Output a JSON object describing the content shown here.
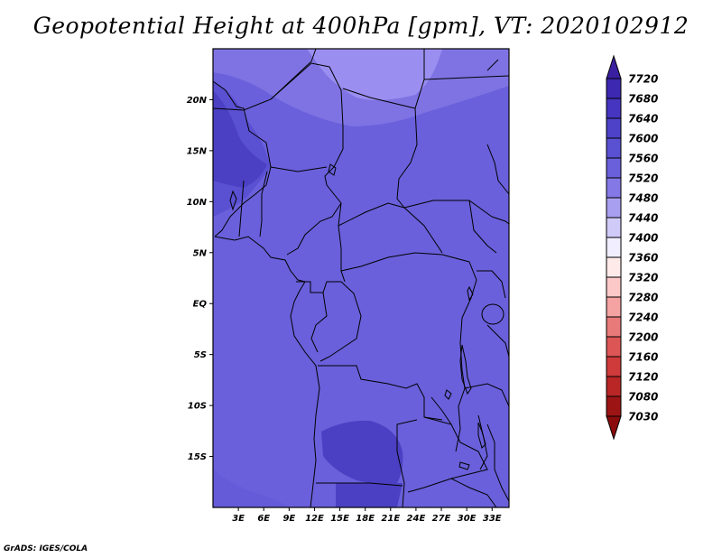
{
  "title": "Geopotential Height at 400hPa [gpm], VT: 2020102912",
  "credit": "GrADS: IGES/COLA",
  "map": {
    "lon_range": [
      0,
      35
    ],
    "lat_range": [
      -20,
      25
    ],
    "lat_ticks": [
      {
        "value": 20,
        "label": "20N"
      },
      {
        "value": 15,
        "label": "15N"
      },
      {
        "value": 10,
        "label": "10N"
      },
      {
        "value": 5,
        "label": "5N"
      },
      {
        "value": 0,
        "label": "EQ"
      },
      {
        "value": -5,
        "label": "5S"
      },
      {
        "value": -10,
        "label": "10S"
      },
      {
        "value": -15,
        "label": "15S"
      }
    ],
    "lon_ticks": [
      {
        "value": 3,
        "label": "3E"
      },
      {
        "value": 6,
        "label": "6E"
      },
      {
        "value": 9,
        "label": "9E"
      },
      {
        "value": 12,
        "label": "12E"
      },
      {
        "value": 15,
        "label": "15E"
      },
      {
        "value": 18,
        "label": "18E"
      },
      {
        "value": 21,
        "label": "21E"
      },
      {
        "value": 24,
        "label": "24E"
      },
      {
        "value": 27,
        "label": "27E"
      },
      {
        "value": 30,
        "label": "30E"
      },
      {
        "value": 33,
        "label": "33E"
      }
    ]
  },
  "colorbar": {
    "levels": [
      "7720",
      "7680",
      "7640",
      "7600",
      "7560",
      "7520",
      "7480",
      "7440",
      "7400",
      "7360",
      "7320",
      "7280",
      "7240",
      "7200",
      "7160",
      "7120",
      "7080",
      "7030"
    ],
    "colors": [
      "#3a1fa0",
      "#3d28b0",
      "#4535c0",
      "#4d42c8",
      "#5a50d2",
      "#6a60db",
      "#8478e6",
      "#a99ff0",
      "#cfcaf8",
      "#f0eeff",
      "#ffeaea",
      "#fcc8c8",
      "#f4a2a2",
      "#e87a7a",
      "#dc5656",
      "#cf3a3a",
      "#b82626",
      "#9c1414",
      "#8a0c0c"
    ]
  },
  "chart_data": {
    "type": "heatmap",
    "title": "Geopotential Height at 400hPa [gpm], VT: 2020102912",
    "x_ticks": [
      "3E",
      "6E",
      "9E",
      "12E",
      "15E",
      "18E",
      "21E",
      "24E",
      "27E",
      "30E",
      "33E"
    ],
    "y_ticks": [
      "20N",
      "15N",
      "10N",
      "5N",
      "EQ",
      "5S",
      "10S",
      "15S"
    ],
    "legend_levels": [
      7720,
      7680,
      7640,
      7600,
      7560,
      7520,
      7480,
      7440,
      7400,
      7360,
      7320,
      7280,
      7240,
      7200,
      7160,
      7120,
      7080,
      7030
    ],
    "field_range_shown": [
      7480,
      7600
    ]
  }
}
